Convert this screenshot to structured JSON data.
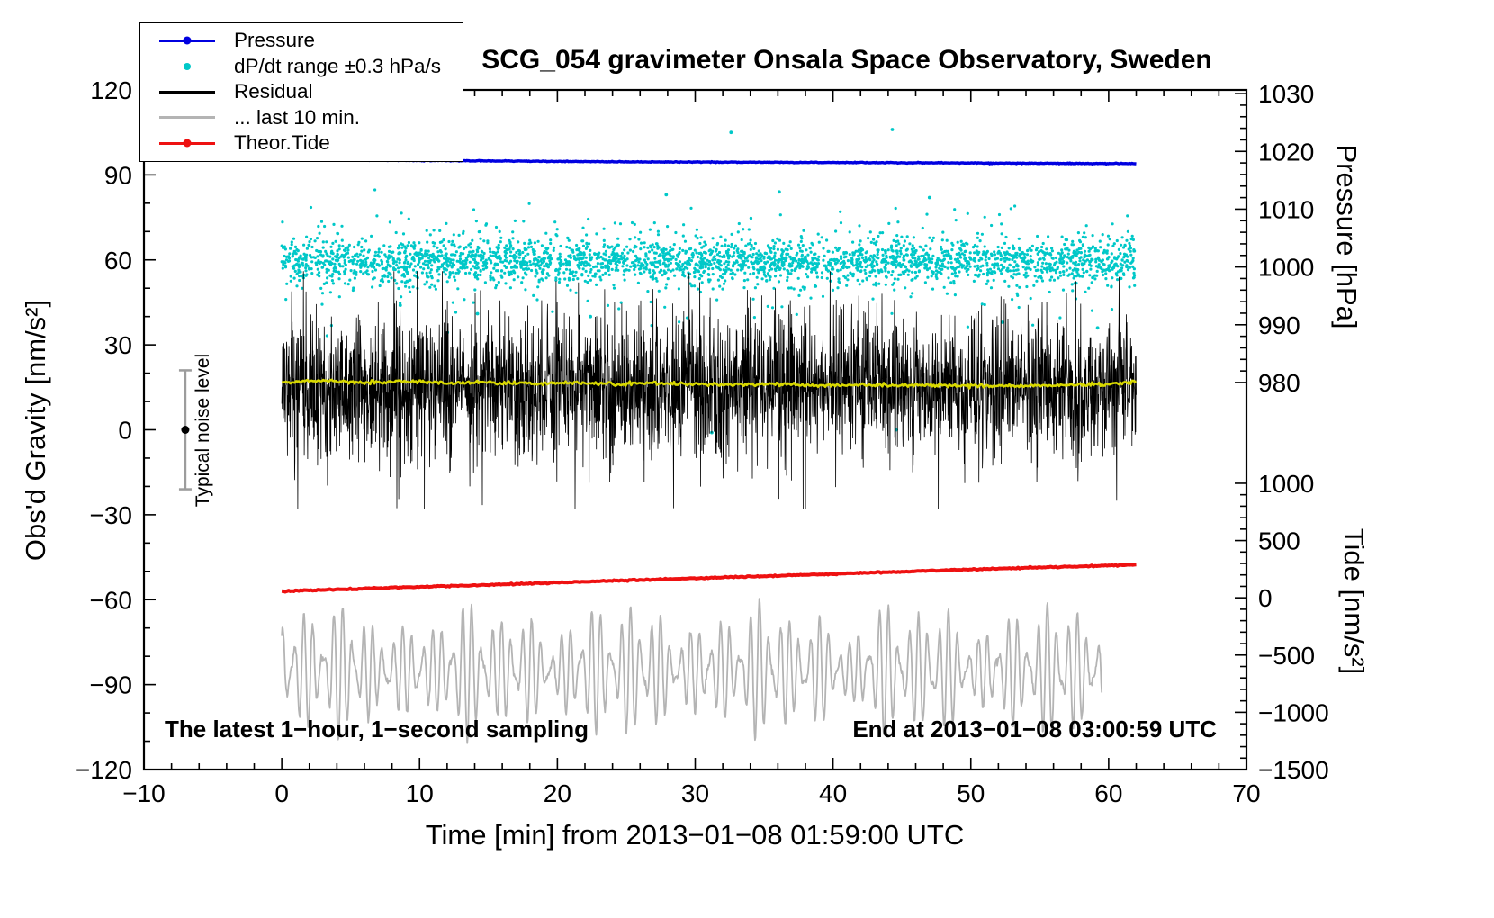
{
  "chart_data": {
    "type": "line",
    "title": "SCG_054 gravimeter Onsala Space Observatory, Sweden",
    "x_axis": {
      "label": "Time [min] from 2013−01−08 01:59:00 UTC",
      "min": -10,
      "max": 70,
      "major_ticks": [
        -10,
        0,
        10,
        20,
        30,
        40,
        50,
        60,
        70
      ],
      "tick_labels": [
        "−10",
        "0",
        "10",
        "20",
        "30",
        "40",
        "50",
        "60",
        "70"
      ],
      "minor_step": 2
    },
    "gravity_axis": {
      "label": "Obs'd Gravity [nm/s²]",
      "min": -120,
      "max": 120,
      "major_ticks": [
        -120,
        -90,
        -60,
        -30,
        0,
        30,
        60,
        90,
        120
      ],
      "tick_labels": [
        "−120",
        "−90",
        "−60",
        "−30",
        "0",
        "30",
        "60",
        "90",
        "120"
      ],
      "minor_step": 10
    },
    "pressure_axis": {
      "label": "Pressure [hPa]",
      "ticks": [
        1030,
        1020,
        1010,
        1000,
        990,
        980
      ],
      "tick_labels": [
        "1030",
        "1020",
        "1010",
        "1000",
        "990",
        "980"
      ],
      "minor_step": 2,
      "anchors": [
        [
          1030,
          118.7
        ],
        [
          980,
          16.7
        ]
      ]
    },
    "tide_axis": {
      "label": "Tide [nm/s²]",
      "ticks": [
        1000,
        500,
        0,
        -500,
        -1000,
        -1500
      ],
      "tick_labels": [
        "1000",
        "500",
        "0",
        "−500",
        "−1000",
        "−1500"
      ],
      "minor_step": 100,
      "anchors": [
        [
          1000,
          -18.9
        ],
        [
          -1500,
          -120
        ]
      ]
    },
    "legend": {
      "entries": [
        {
          "label": "Pressure",
          "marker": "line-dot",
          "color": "#0000e0"
        },
        {
          "label": "dP/dt range ±0.3 hPa/s",
          "marker": "dot",
          "color": "#00c8c8"
        },
        {
          "label": "Residual",
          "marker": "line",
          "color": "#000000"
        },
        {
          "label": "... last 10 min.",
          "marker": "line",
          "color": "#b4b4b4"
        },
        {
          "label": "Theor.Tide",
          "marker": "line-dot",
          "color": "#ee1111"
        }
      ]
    },
    "annotations": {
      "sampling_note": "The latest 1−hour, 1−second sampling",
      "end_time_note": "End at 2013−01−08 03:00:59 UTC"
    },
    "noise_marker": {
      "x": -7,
      "center": 0,
      "half_range": 21,
      "cap_half_width": 7,
      "bar_color": "#9c9c9c",
      "dot_color": "#000000",
      "label": "Typical noise level"
    },
    "series": [
      {
        "id": "dpdt_scatter",
        "name": "dP/dt range ±0.3 hPa/s",
        "kind": "scatter",
        "color": "#00c8c8",
        "axis": "gravity",
        "x_range": [
          0,
          62
        ],
        "count": 3000,
        "center": 59.5,
        "sigma_core": 3.6,
        "core_fraction": 0.8,
        "sigma_wide": 9.0,
        "marker_radius": 1.6,
        "outliers": [
          [
            32.6,
            105
          ],
          [
            44.3,
            106
          ],
          [
            27.9,
            83
          ],
          [
            8.6,
            44
          ],
          [
            14.2,
            41
          ],
          [
            31.2,
            -1
          ],
          [
            44.6,
            0
          ],
          [
            52.3,
            38
          ],
          [
            59.2,
            36
          ],
          [
            22.4,
            40
          ],
          [
            36.1,
            84
          ],
          [
            47.0,
            82
          ]
        ]
      },
      {
        "id": "residual",
        "name": "Residual",
        "kind": "noise-line",
        "color": "#000000",
        "axis": "gravity",
        "x_range": [
          0,
          62
        ],
        "count": 3200,
        "mean": 15.5,
        "sigma": 8.0,
        "clip": [
          -28,
          56
        ],
        "env_min": 0.35,
        "env_max": 1.85,
        "spike_prob": 0.02,
        "spike_scale": 2.4,
        "width": 0.8
      },
      {
        "id": "residual_smoothed",
        "name": "Residual smoothed",
        "kind": "line",
        "color": "#d8d800",
        "axis": "gravity",
        "width": 2.6,
        "jitter": 0.3,
        "samples": 600,
        "points": [
          [
            0,
            16.9
          ],
          [
            3,
            17.3
          ],
          [
            6,
            16.7
          ],
          [
            9,
            17.0
          ],
          [
            12,
            16.5
          ],
          [
            15,
            16.8
          ],
          [
            18,
            16.4
          ],
          [
            21,
            16.6
          ],
          [
            24,
            16.2
          ],
          [
            27,
            16.5
          ],
          [
            30,
            16.1
          ],
          [
            33,
            15.9
          ],
          [
            36,
            16.1
          ],
          [
            39,
            15.7
          ],
          [
            42,
            15.9
          ],
          [
            45,
            15.6
          ],
          [
            48,
            15.8
          ],
          [
            51,
            15.4
          ],
          [
            54,
            15.6
          ],
          [
            57,
            15.8
          ],
          [
            60,
            16.1
          ],
          [
            62,
            17.0
          ]
        ]
      },
      {
        "id": "pressure",
        "name": "Pressure",
        "kind": "line",
        "color": "#0000e0",
        "axis": "pressure",
        "width": 3.4,
        "jitter": 0.035,
        "samples": 800,
        "points": [
          [
            0,
            1018.6
          ],
          [
            6,
            1018.5
          ],
          [
            12,
            1018.4
          ],
          [
            18,
            1018.3
          ],
          [
            24,
            1018.2
          ],
          [
            30,
            1018.15
          ],
          [
            36,
            1018.1
          ],
          [
            42,
            1018.05
          ],
          [
            48,
            1018.0
          ],
          [
            54,
            1017.95
          ],
          [
            58,
            1017.9
          ],
          [
            62,
            1017.9
          ]
        ]
      },
      {
        "id": "last10",
        "name": "... last 10 min.",
        "kind": "oscillation",
        "color": "#b4b4b4",
        "axis": "tide",
        "x_range": [
          0,
          59.5
        ],
        "count": 1500,
        "center": -634,
        "scale": 500,
        "noise": 30,
        "width": 1.8,
        "clip": [
          -1270,
          0
        ],
        "components": [
          {
            "period": 0.72,
            "amp": 0.75,
            "phase": 0.4
          },
          {
            "period": 0.55,
            "amp": 0.5,
            "phase": 1.7
          }
        ],
        "envelope": {
          "base": 0.3,
          "p1": 10.5,
          "ph1": 0.5,
          "p2": 4.3,
          "ph2": 1.2
        }
      },
      {
        "id": "theor_tide",
        "name": "Theor.Tide",
        "kind": "line",
        "color": "#ee1111",
        "axis": "tide",
        "width": 4,
        "jitter": 2.5,
        "samples": 500,
        "points": [
          [
            0,
            58
          ],
          [
            8,
            88
          ],
          [
            16,
            118
          ],
          [
            24,
            148
          ],
          [
            32,
            178
          ],
          [
            40,
            208
          ],
          [
            48,
            240
          ],
          [
            56,
            268
          ],
          [
            62,
            288
          ]
        ]
      }
    ]
  }
}
